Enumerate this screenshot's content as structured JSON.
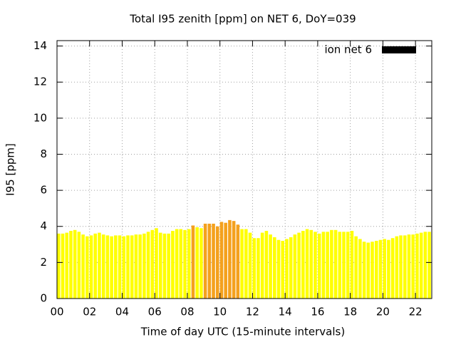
{
  "chart_data": {
    "type": "bar",
    "title": "Total I95 zenith [ppm] on NET 6, DoY=039",
    "x_label": "Time of day UTC (15-minute intervals)",
    "y_label": "I95 [ppm]",
    "x": [
      0,
      0.25,
      0.5,
      0.75,
      1,
      1.25,
      1.5,
      1.75,
      2,
      2.25,
      2.5,
      2.75,
      3,
      3.25,
      3.5,
      3.75,
      4,
      4.25,
      4.5,
      4.75,
      5,
      5.25,
      5.5,
      5.75,
      6,
      6.25,
      6.5,
      6.75,
      7,
      7.25,
      7.5,
      7.75,
      8,
      8.25,
      8.5,
      8.75,
      9,
      9.25,
      9.5,
      9.75,
      10,
      10.25,
      10.5,
      10.75,
      11,
      11.25,
      11.5,
      11.75,
      12,
      12.25,
      12.5,
      12.75,
      13,
      13.25,
      13.5,
      13.75,
      14,
      14.25,
      14.5,
      14.75,
      15,
      15.25,
      15.5,
      15.75,
      16,
      16.25,
      16.5,
      16.75,
      17,
      17.25,
      17.5,
      17.75,
      18,
      18.25,
      18.5,
      18.75,
      19,
      19.25,
      19.5,
      19.75,
      20,
      20.25,
      20.5,
      20.75,
      21,
      21.25,
      21.5,
      21.75,
      22,
      22.25,
      22.5,
      22.75
    ],
    "series": [
      {
        "name": "ion net 6",
        "color": "#000000",
        "values": [
          3.6,
          3.6,
          3.65,
          3.75,
          3.8,
          3.7,
          3.55,
          3.45,
          3.5,
          3.6,
          3.65,
          3.55,
          3.5,
          3.45,
          3.5,
          3.5,
          3.45,
          3.5,
          3.5,
          3.55,
          3.55,
          3.6,
          3.7,
          3.8,
          3.9,
          3.65,
          3.6,
          3.6,
          3.75,
          3.85,
          3.85,
          3.8,
          3.85,
          4.05,
          3.95,
          3.9,
          4.15,
          4.15,
          4.15,
          4.0,
          4.25,
          4.2,
          4.35,
          4.3,
          4.1,
          3.85,
          3.85,
          3.65,
          3.35,
          3.35,
          3.65,
          3.75,
          3.55,
          3.4,
          3.25,
          3.2,
          3.3,
          3.4,
          3.55,
          3.65,
          3.75,
          3.85,
          3.8,
          3.7,
          3.6,
          3.7,
          3.7,
          3.8,
          3.8,
          3.7,
          3.7,
          3.7,
          3.75,
          3.45,
          3.3,
          3.15,
          3.1,
          3.15,
          3.2,
          3.25,
          3.3,
          3.25,
          3.35,
          3.45,
          3.5,
          3.5,
          3.55,
          3.55,
          3.6,
          3.65,
          3.7,
          3.7
        ],
        "bar_colors": [
          "#ffff00",
          "#ffff00",
          "#ffff00",
          "#ffff00",
          "#ffff00",
          "#ffff00",
          "#ffff00",
          "#ffff00",
          "#ffff00",
          "#ffff00",
          "#ffff00",
          "#ffff00",
          "#ffff00",
          "#ffff00",
          "#ffff00",
          "#ffff00",
          "#ffff00",
          "#ffff00",
          "#ffff00",
          "#ffff00",
          "#ffff00",
          "#ffff00",
          "#ffff00",
          "#ffff00",
          "#ffff00",
          "#ffff00",
          "#ffff00",
          "#ffff00",
          "#ffff00",
          "#ffff00",
          "#ffff00",
          "#ffff00",
          "#ffff00",
          "#f4a11d",
          "#ffff00",
          "#ffff00",
          "#f4a11d",
          "#f4a11d",
          "#f4a11d",
          "#f4a11d",
          "#f4a11d",
          "#f4a11d",
          "#f4a11d",
          "#f4a11d",
          "#f4a11d",
          "#ffff00",
          "#ffff00",
          "#ffff00",
          "#ffff00",
          "#ffff00",
          "#ffff00",
          "#ffff00",
          "#ffff00",
          "#ffff00",
          "#ffff00",
          "#ffff00",
          "#ffff00",
          "#ffff00",
          "#ffff00",
          "#ffff00",
          "#ffff00",
          "#ffff00",
          "#ffff00",
          "#ffff00",
          "#ffff00",
          "#ffff00",
          "#ffff00",
          "#ffff00",
          "#ffff00",
          "#ffff00",
          "#ffff00",
          "#ffff00",
          "#ffff00",
          "#ffff00",
          "#ffff00",
          "#ffff00",
          "#ffff00",
          "#ffff00",
          "#ffff00",
          "#ffff00",
          "#ffff00",
          "#ffff00",
          "#ffff00",
          "#ffff00",
          "#ffff00",
          "#ffff00",
          "#ffff00",
          "#ffff00",
          "#ffff00",
          "#ffff00",
          "#ffff00",
          "#ffff00"
        ]
      }
    ],
    "xlim": [
      0,
      23
    ],
    "ylim": [
      0,
      14.3
    ],
    "xticks": [
      {
        "value": 0,
        "label": "00"
      },
      {
        "value": 2,
        "label": "02"
      },
      {
        "value": 4,
        "label": "04"
      },
      {
        "value": 6,
        "label": "06"
      },
      {
        "value": 8,
        "label": "08"
      },
      {
        "value": 10,
        "label": "10"
      },
      {
        "value": 12,
        "label": "12"
      },
      {
        "value": 14,
        "label": "14"
      },
      {
        "value": 16,
        "label": "16"
      },
      {
        "value": 18,
        "label": "18"
      },
      {
        "value": 20,
        "label": "20"
      },
      {
        "value": 22,
        "label": "22"
      }
    ],
    "yticks": [
      0,
      2,
      4,
      6,
      8,
      10,
      12,
      14
    ],
    "grid": true,
    "legend": "top-right"
  }
}
